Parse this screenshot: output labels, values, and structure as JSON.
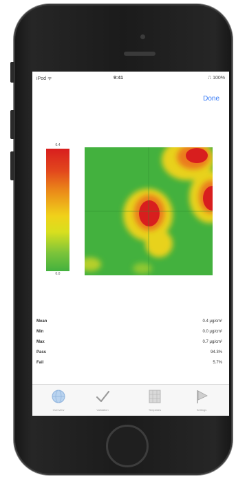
{
  "device": {
    "frame_color": "#1d1d1d"
  },
  "status_bar": {
    "carrier": "iPod ᯤ",
    "time": "9:41",
    "battery": "⎍ 100%"
  },
  "nav": {
    "done_label": "Done"
  },
  "colorbar": {
    "max_label": "0.4",
    "min_label": "0.0",
    "gradient_colors": [
      "#d81e1e",
      "#eb8c19",
      "#f0d21a",
      "#43b13e"
    ]
  },
  "heatmap": {
    "background_color": "#43b13e",
    "hot_color": "#d81e1e",
    "warm_color": "#f0d21a"
  },
  "stats": [
    {
      "label": "Mean",
      "value": "0.4 μg/cm²"
    },
    {
      "label": "Min",
      "value": "0.0 μg/cm²"
    },
    {
      "label": "Max",
      "value": "0.7 μg/cm²"
    },
    {
      "label": "Pass",
      "value": "94.3%"
    },
    {
      "label": "Fail",
      "value": "5.7%"
    }
  ],
  "tabs": [
    {
      "icon": "globe-icon",
      "label": "Overview"
    },
    {
      "icon": "checkmark-icon",
      "label": "Validation"
    },
    {
      "icon": "grid-icon",
      "label": "Templates"
    },
    {
      "icon": "flag-icon",
      "label": "Settings"
    }
  ]
}
